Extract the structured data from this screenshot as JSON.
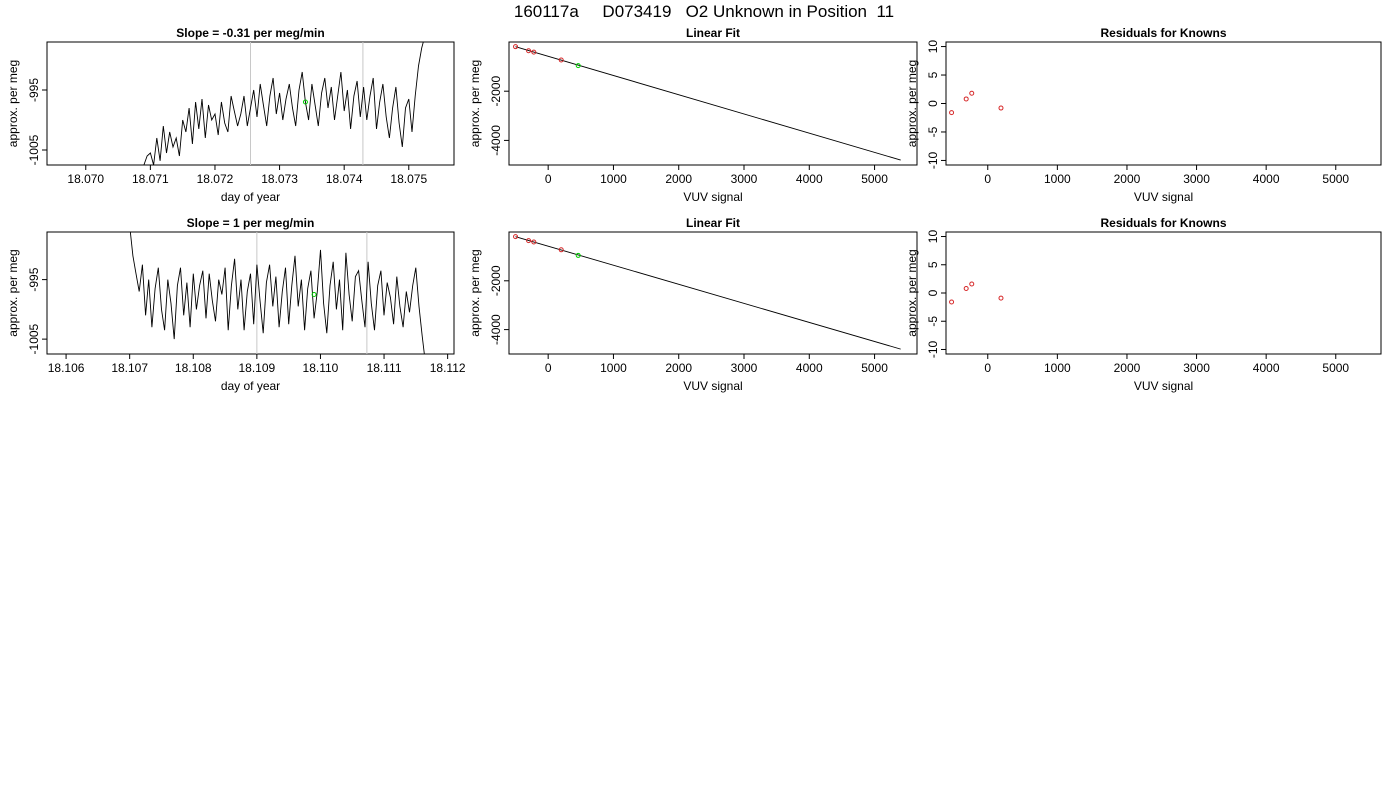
{
  "page": {
    "title": "160117a     D073419   O2 Unknown in Position  11"
  },
  "chart_data": [
    {
      "id": "row1-timeseries",
      "type": "line",
      "title": "Slope =  -0.31  per meg/min",
      "xlabel": "day of year",
      "ylabel": "approx. per meg",
      "xlim": [
        18.0694,
        18.0757
      ],
      "ylim": [
        -1007.5,
        -987
      ],
      "xticks": [
        18.07,
        18.071,
        18.072,
        18.073,
        18.074,
        18.075
      ],
      "xtick_labels": [
        "18.070",
        "18.071",
        "18.072",
        "18.073",
        "18.074",
        "18.075"
      ],
      "yticks": [
        -1005,
        -995
      ],
      "ytick_labels": [
        "-1005",
        "-995"
      ],
      "vlines": [
        18.07255,
        18.07429
      ],
      "vline_color": "#c8c8c8",
      "marker": {
        "x": 18.0734,
        "y": -997,
        "color": "#00cc00"
      },
      "series": [
        {
          "x": [
            18.0709,
            18.07095,
            18.071,
            18.07105,
            18.0711,
            18.07115,
            18.0712,
            18.07125,
            18.0713,
            18.07135,
            18.0714,
            18.07145,
            18.0715,
            18.07155,
            18.0716,
            18.07165,
            18.0717,
            18.07175,
            18.0718,
            18.07185,
            18.0719,
            18.07195,
            18.072,
            18.07205,
            18.0721,
            18.07215,
            18.0722,
            18.07225,
            18.0723,
            18.07235,
            18.0724,
            18.07245,
            18.0725,
            18.07255,
            18.0726,
            18.07265,
            18.0727,
            18.07275,
            18.0728,
            18.07285,
            18.0729,
            18.07295,
            18.073,
            18.07305,
            18.0731,
            18.07315,
            18.0732,
            18.07325,
            18.0733,
            18.07335,
            18.0734,
            18.07345,
            18.0735,
            18.07355,
            18.0736,
            18.07365,
            18.0737,
            18.07375,
            18.0738,
            18.07385,
            18.0739,
            18.07395,
            18.074,
            18.07405,
            18.0741,
            18.07415,
            18.0742,
            18.07425,
            18.0743,
            18.07435,
            18.0744,
            18.07445,
            18.0745,
            18.07455,
            18.0746,
            18.07465,
            18.0747,
            18.07475,
            18.0748,
            18.07485,
            18.0749,
            18.07495,
            18.075,
            18.07505,
            18.0751,
            18.07515,
            18.0752,
            18.07525
          ],
          "y": [
            -1007.5,
            -1006,
            -1005.5,
            -1007.5,
            -1003,
            -1006.8,
            -1001,
            -1005.5,
            -1002,
            -1004.5,
            -1003,
            -1006,
            -1000,
            -1002,
            -998,
            -1004,
            -997,
            -1001.5,
            -996.5,
            -1003,
            -997.5,
            -1000,
            -999,
            -1002.5,
            -997,
            -1000.5,
            -1002,
            -996,
            -998.5,
            -1001,
            -999,
            -996,
            -1001,
            -998,
            -995,
            -999.5,
            -994,
            -997.5,
            -1001,
            -996,
            -993,
            -999,
            -995.5,
            -1000,
            -996.5,
            -994,
            -998,
            -1001,
            -995,
            -992,
            -997,
            -1000,
            -994,
            -997.5,
            -1001,
            -995.5,
            -993,
            -998,
            -994.5,
            -1000,
            -996,
            -992,
            -998.5,
            -995,
            -1001.5,
            -996,
            -993.5,
            -999.5,
            -994.5,
            -1000,
            -996,
            -993,
            -1001.5,
            -997,
            -994,
            -999.5,
            -1003,
            -998,
            -994.5,
            -1000.5,
            -1004.5,
            -998,
            -996.5,
            -1002,
            -996,
            -991,
            -988,
            -986
          ]
        }
      ]
    },
    {
      "id": "row1-linearfit",
      "type": "scatter",
      "title": "Linear Fit",
      "xlabel": "VUV signal",
      "ylabel": "approx. per meg",
      "xlim": [
        -600,
        5650
      ],
      "ylim": [
        -5000,
        0
      ],
      "xticks": [
        0,
        1000,
        2000,
        3000,
        4000,
        5000
      ],
      "yticks": [
        -4000,
        -2000
      ],
      "fit_line": {
        "x": [
          -500,
          5400
        ],
        "y": [
          -190,
          -4800
        ],
        "color": "#000000"
      },
      "known_points": {
        "x": [
          -500,
          -300,
          -220,
          200
        ],
        "y": [
          -190,
          -355,
          -410,
          -730
        ],
        "color": "#d62728"
      },
      "unknown_point": {
        "x": 460,
        "y": -960,
        "color": "#00cc00"
      }
    },
    {
      "id": "row1-residuals",
      "type": "scatter",
      "title": "Residuals for Knowns",
      "xlabel": "VUV signal",
      "ylabel": "approx. per meg",
      "xlim": [
        -600,
        5650
      ],
      "ylim": [
        -10.8,
        10.8
      ],
      "xticks": [
        0,
        1000,
        2000,
        3000,
        4000,
        5000
      ],
      "yticks": [
        -10,
        -5,
        0,
        5,
        10
      ],
      "points": {
        "x": [
          -520,
          -310,
          -230,
          190
        ],
        "y": [
          -1.6,
          0.8,
          1.8,
          -0.8
        ],
        "color": "#d62728"
      }
    },
    {
      "id": "row2-timeseries",
      "type": "line",
      "title": "Slope =  1  per meg/min",
      "xlabel": "day of year",
      "ylabel": "approx. per meg",
      "xlim": [
        18.1057,
        18.1121
      ],
      "ylim": [
        -1007.5,
        -987
      ],
      "xticks": [
        18.106,
        18.107,
        18.108,
        18.109,
        18.11,
        18.111,
        18.112
      ],
      "xtick_labels": [
        "18.106",
        "18.107",
        "18.108",
        "18.109",
        "18.110",
        "18.111",
        "18.112"
      ],
      "yticks": [
        -1005,
        -995
      ],
      "ytick_labels": [
        "-1005",
        "-995"
      ],
      "vlines": [
        18.109,
        18.11073
      ],
      "vline_color": "#c8c8c8",
      "marker": {
        "x": 18.1099,
        "y": -997.5,
        "color": "#00cc00"
      },
      "series": [
        {
          "x": [
            18.107,
            18.10705,
            18.1071,
            18.10715,
            18.1072,
            18.10725,
            18.1073,
            18.10735,
            18.1074,
            18.10745,
            18.1075,
            18.10755,
            18.1076,
            18.10765,
            18.1077,
            18.10775,
            18.1078,
            18.10785,
            18.1079,
            18.10795,
            18.108,
            18.10805,
            18.1081,
            18.10815,
            18.1082,
            18.10825,
            18.1083,
            18.10835,
            18.1084,
            18.10845,
            18.1085,
            18.10855,
            18.1086,
            18.10865,
            18.1087,
            18.10875,
            18.1088,
            18.10885,
            18.1089,
            18.10895,
            18.109,
            18.10905,
            18.1091,
            18.10915,
            18.1092,
            18.10925,
            18.1093,
            18.10935,
            18.1094,
            18.10945,
            18.1095,
            18.10955,
            18.1096,
            18.10965,
            18.1097,
            18.10975,
            18.1098,
            18.10985,
            18.1099,
            18.10995,
            18.11,
            18.11005,
            18.1101,
            18.11015,
            18.1102,
            18.11025,
            18.1103,
            18.11035,
            18.1104,
            18.11045,
            18.1105,
            18.11055,
            18.1106,
            18.11065,
            18.1107,
            18.11075,
            18.1108,
            18.11085,
            18.1109,
            18.11095,
            18.111,
            18.11105,
            18.1111,
            18.11115,
            18.1112,
            18.11125,
            18.1113,
            18.11135,
            18.1114,
            18.11145,
            18.1115,
            18.11155,
            18.1116,
            18.11165
          ],
          "y": [
            -986,
            -991,
            -994,
            -997,
            -992.5,
            -1001,
            -995,
            -1003,
            -996.5,
            -993,
            -1000,
            -1003.5,
            -995,
            -999,
            -1005,
            -996,
            -993,
            -1001,
            -995.5,
            -1003,
            -994,
            -1000,
            -996,
            -993.5,
            -1001.5,
            -994,
            -998.5,
            -1002,
            -995,
            -997.5,
            -993,
            -1003.5,
            -996,
            -991.5,
            -1000,
            -995,
            -1003.5,
            -997,
            -994,
            -1002.5,
            -992.5,
            -998.5,
            -1004,
            -995.5,
            -992.5,
            -999.5,
            -994.5,
            -1003,
            -997,
            -993,
            -1002.5,
            -996,
            -991,
            -999.5,
            -995,
            -1003.5,
            -996.5,
            -993.5,
            -1001.5,
            -997,
            -990,
            -999,
            -1004,
            -996,
            -992,
            -1000,
            -995,
            -1003.5,
            -990.5,
            -997.5,
            -1002,
            -994.5,
            -993.5,
            -998.5,
            -1003,
            -992,
            -999,
            -1003.5,
            -996,
            -993.5,
            -1001,
            -995.5,
            -998,
            -1002.5,
            -994.5,
            -999.5,
            -1003,
            -997,
            -1000.5,
            -996,
            -993,
            -999.5,
            -1004.5,
            -1009
          ]
        }
      ]
    },
    {
      "id": "row2-linearfit",
      "type": "scatter",
      "title": "Linear Fit",
      "xlabel": "VUV signal",
      "ylabel": "approx. per meg",
      "xlim": [
        -600,
        5650
      ],
      "ylim": [
        -5000,
        0
      ],
      "xticks": [
        0,
        1000,
        2000,
        3000,
        4000,
        5000
      ],
      "yticks": [
        -4000,
        -2000
      ],
      "fit_line": {
        "x": [
          -500,
          5400
        ],
        "y": [
          -190,
          -4800
        ],
        "color": "#000000"
      },
      "known_points": {
        "x": [
          -500,
          -300,
          -220,
          200
        ],
        "y": [
          -190,
          -355,
          -410,
          -730
        ],
        "color": "#d62728"
      },
      "unknown_point": {
        "x": 460,
        "y": -960,
        "color": "#00cc00"
      }
    },
    {
      "id": "row2-residuals",
      "type": "scatter",
      "title": "Residuals for Knowns",
      "xlabel": "VUV signal",
      "ylabel": "approx. per meg",
      "xlim": [
        -600,
        5650
      ],
      "ylim": [
        -10.8,
        10.8
      ],
      "xticks": [
        0,
        1000,
        2000,
        3000,
        4000,
        5000
      ],
      "yticks": [
        -10,
        -5,
        0,
        5,
        10
      ],
      "points": {
        "x": [
          -520,
          -310,
          -230,
          190
        ],
        "y": [
          -1.6,
          0.8,
          1.6,
          -0.9
        ],
        "color": "#d62728"
      }
    }
  ]
}
